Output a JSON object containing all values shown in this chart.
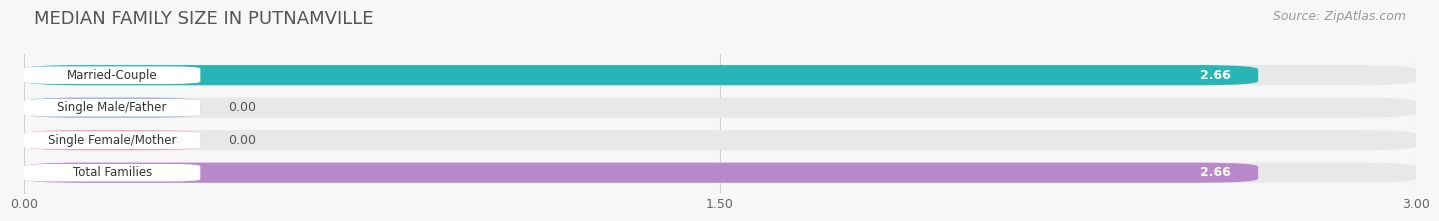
{
  "title": "MEDIAN FAMILY SIZE IN PUTNAMVILLE",
  "source": "Source: ZipAtlas.com",
  "categories": [
    "Married-Couple",
    "Single Male/Father",
    "Single Female/Mother",
    "Total Families"
  ],
  "values": [
    2.66,
    0.0,
    0.0,
    2.66
  ],
  "bar_colors": [
    "#29b5b5",
    "#9baedd",
    "#f2a0b2",
    "#b989cc"
  ],
  "xlim": [
    0,
    3.0
  ],
  "xticks": [
    0.0,
    1.5,
    3.0
  ],
  "background_color": "#f7f7f7",
  "bar_bg_color": "#e8e8e8",
  "title_fontsize": 13,
  "source_fontsize": 9,
  "bar_height": 0.62,
  "value_fontsize": 9,
  "label_fontsize": 8.5
}
